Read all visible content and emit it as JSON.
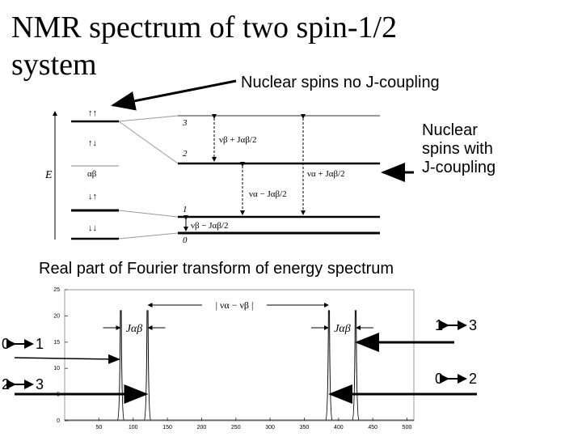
{
  "title_lines": [
    "NMR spectrum of two spin-1/2",
    "system"
  ],
  "note_no_j": "Nuclear spins no J-coupling",
  "note_with_j": "Nuclear spins with J-coupling",
  "energy_diagram": {
    "axis_label": "E",
    "left_states": [
      "↑↑",
      "↑↓",
      "αβ",
      "↓↑",
      "↓↓"
    ],
    "levels": [
      "3",
      "2",
      "1",
      "0"
    ],
    "transitions": [
      "νβ + Jαβ/2",
      "να − Jαβ/2",
      "να + Jαβ/2",
      "νβ − Jαβ/2"
    ]
  },
  "spectrum": {
    "type": "line",
    "title": "Real part of Fourier transform of energy spectrum",
    "x": [
      82,
      121,
      386,
      425
    ],
    "values": [
      21,
      21,
      21,
      21
    ],
    "color": "#000000",
    "xlim": [
      0,
      510
    ],
    "ylim": [
      0,
      25
    ],
    "xticks": [
      50,
      100,
      150,
      200,
      250,
      300,
      350,
      400,
      450,
      500
    ],
    "yticks": [
      0,
      5,
      10,
      15,
      20,
      25
    ],
    "coupling_label": "Jαβ",
    "splitting_label": "| να − νβ |",
    "transition_labels": [
      {
        "from": "0",
        "to": "1"
      },
      {
        "from": "2",
        "to": "3"
      },
      {
        "from": "1",
        "to": "3"
      },
      {
        "from": "0",
        "to": "2"
      }
    ]
  }
}
